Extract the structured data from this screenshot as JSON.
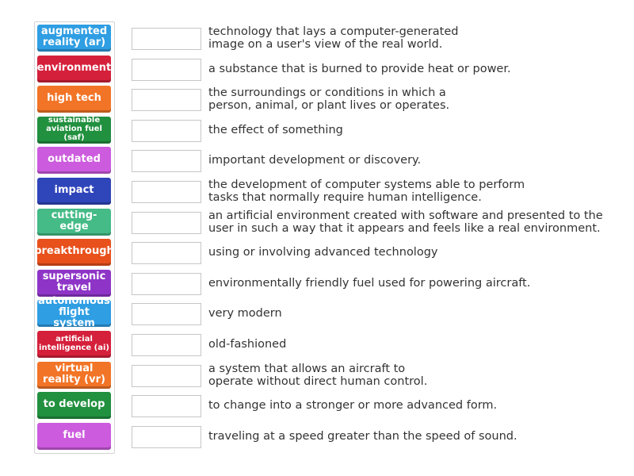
{
  "terms": [
    {
      "label": "augmented reality (ar)",
      "color": "#2f9ee3"
    },
    {
      "label": "environment",
      "color": "#d5203b"
    },
    {
      "label": "high tech",
      "color": "#f27426"
    },
    {
      "label": "sustainable aviation fuel (saf)",
      "color": "#21903f"
    },
    {
      "label": "outdated",
      "color": "#cc5bde"
    },
    {
      "label": "impact",
      "color": "#2f45ba"
    },
    {
      "label": "cutting-edge",
      "color": "#45bb87"
    },
    {
      "label": "breakthrough",
      "color": "#e8501c"
    },
    {
      "label": "supersonic travel",
      "color": "#8e35c7"
    },
    {
      "label": "autonomous flight system",
      "color": "#2f9ee3"
    },
    {
      "label": "artificial intelligence (ai)",
      "color": "#d5203b"
    },
    {
      "label": "virtual reality (vr)",
      "color": "#f27426"
    },
    {
      "label": "to develop",
      "color": "#21903f"
    },
    {
      "label": "fuel",
      "color": "#cc5bde"
    }
  ],
  "definitions": [
    "technology that lays a computer-generated\nimage on a user's view of the real world.",
    "a substance that is burned to provide heat or power.",
    "the surroundings or conditions in which a\nperson, animal, or plant lives or operates.",
    "the effect of something",
    "important development or discovery.",
    "the development of computer systems able to perform\ntasks that normally require human intelligence.",
    "an artificial environment created with software and presented to the\nuser in such a way that it appears and feels like a real environment.",
    "using or involving advanced technology",
    "environmentally friendly fuel used for powering aircraft.",
    "very modern",
    "old-fashioned",
    "a system that allows an aircraft to\noperate without direct human control.",
    "to change into a stronger or more advanced form.",
    "traveling at a speed greater than the speed of sound."
  ]
}
